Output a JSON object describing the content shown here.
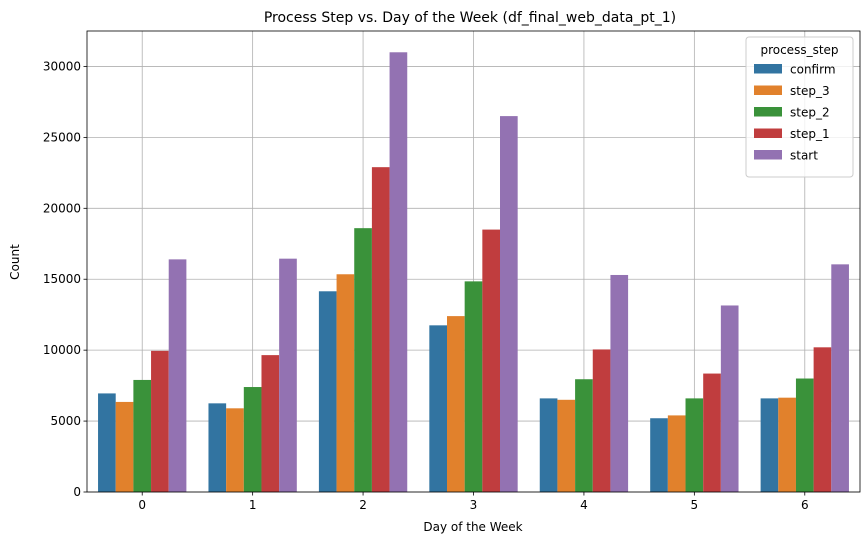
{
  "chart_data": {
    "type": "bar",
    "title": "Process Step vs. Day of the Week (df_final_web_data_pt_1)",
    "xlabel": "Day of the Week",
    "ylabel": "Count",
    "categories": [
      "0",
      "1",
      "2",
      "3",
      "4",
      "5",
      "6"
    ],
    "ylim": [
      0,
      32500
    ],
    "yticks": [
      0,
      5000,
      10000,
      15000,
      20000,
      25000,
      30000
    ],
    "yticks_labels": [
      "0",
      "5000",
      "10000",
      "15000",
      "20000",
      "25000",
      "30000"
    ],
    "grid": true,
    "legend": {
      "title": "process_step",
      "placement": "top-right"
    },
    "series": [
      {
        "name": "confirm",
        "color": "#3274a1",
        "values": [
          6950,
          6250,
          14150,
          11750,
          6600,
          5200,
          6600
        ]
      },
      {
        "name": "step_3",
        "color": "#e1812c",
        "values": [
          6350,
          5900,
          15350,
          12400,
          6500,
          5400,
          6650
        ]
      },
      {
        "name": "step_2",
        "color": "#3a923a",
        "values": [
          7900,
          7400,
          18600,
          14850,
          7950,
          6600,
          8000
        ]
      },
      {
        "name": "step_1",
        "color": "#c03d3e",
        "values": [
          9950,
          9650,
          22900,
          18500,
          10050,
          8350,
          10200
        ]
      },
      {
        "name": "start",
        "color": "#9372b2",
        "values": [
          16400,
          16450,
          31000,
          26500,
          15300,
          13150,
          16050
        ]
      }
    ]
  }
}
